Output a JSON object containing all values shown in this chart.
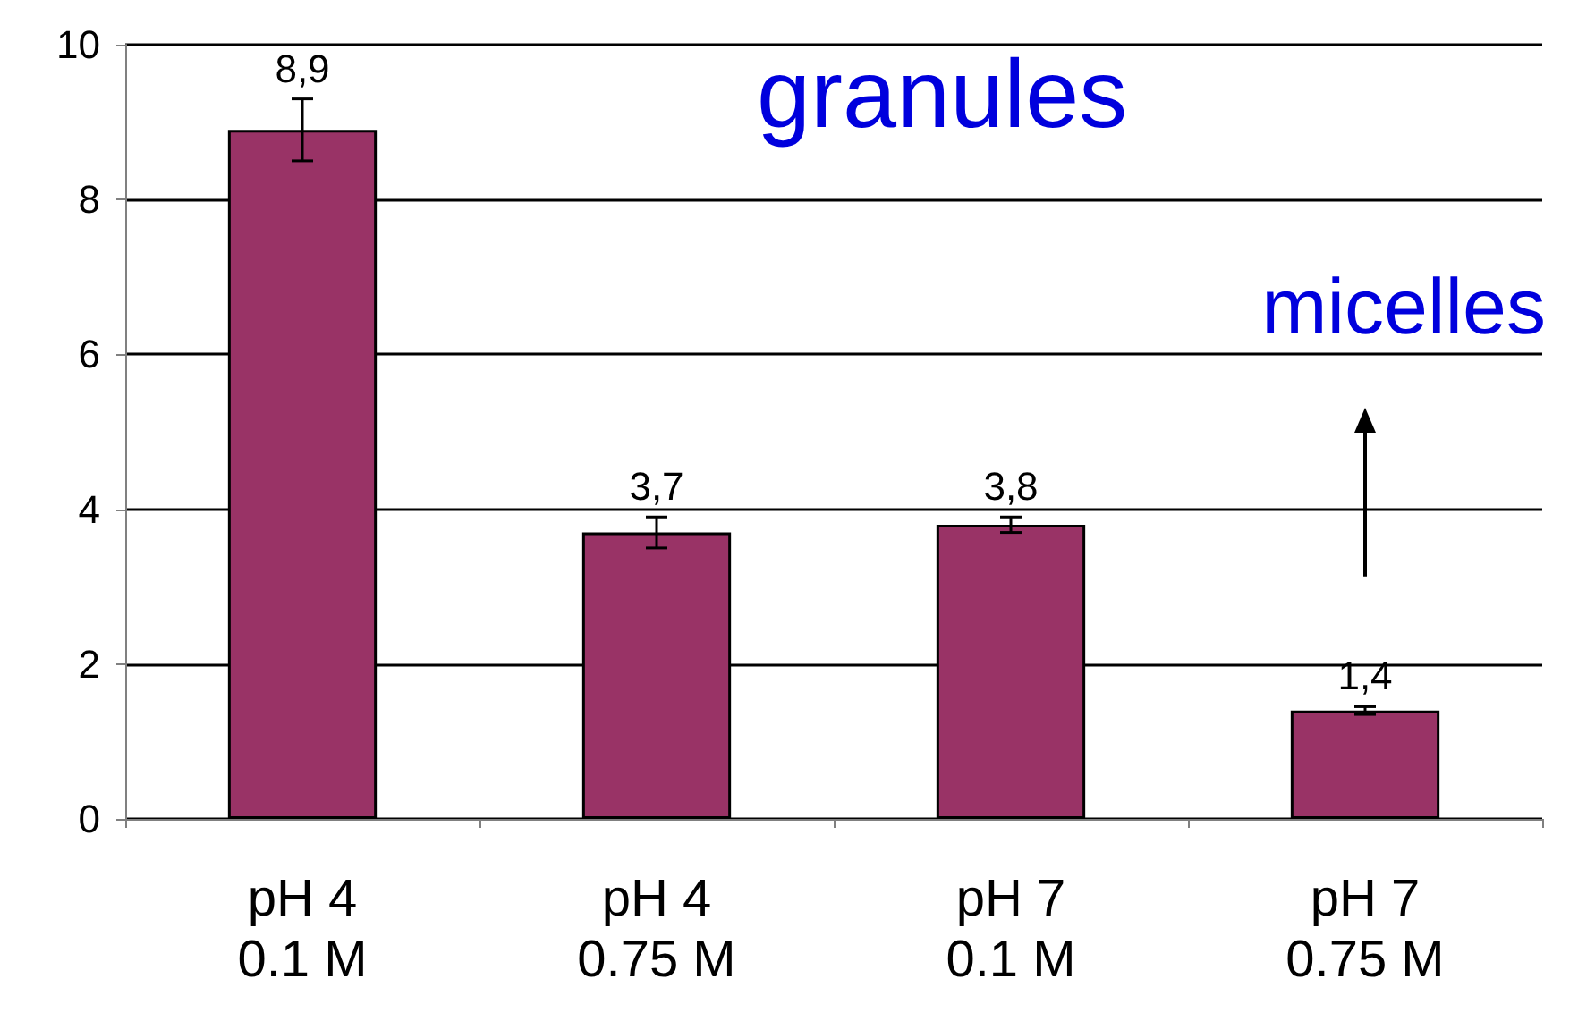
{
  "chart_data": {
    "type": "bar",
    "categories": [
      "pH 4\n0.1 M",
      "pH 4\n0.75 M",
      "pH 7\n0.1 M",
      "pH 7\n0.75 M"
    ],
    "values": [
      8.9,
      3.7,
      3.8,
      1.4
    ],
    "errors": [
      0.4,
      0.2,
      0.1,
      0.05
    ],
    "value_labels": [
      "8,9",
      "3,7",
      "3,8",
      "1,4"
    ],
    "color": "#993366",
    "ylim": [
      0,
      10
    ],
    "yticks": [
      0,
      2,
      4,
      6,
      8,
      10
    ],
    "grid": "y",
    "annotations": [
      "granules",
      "micelles"
    ]
  }
}
